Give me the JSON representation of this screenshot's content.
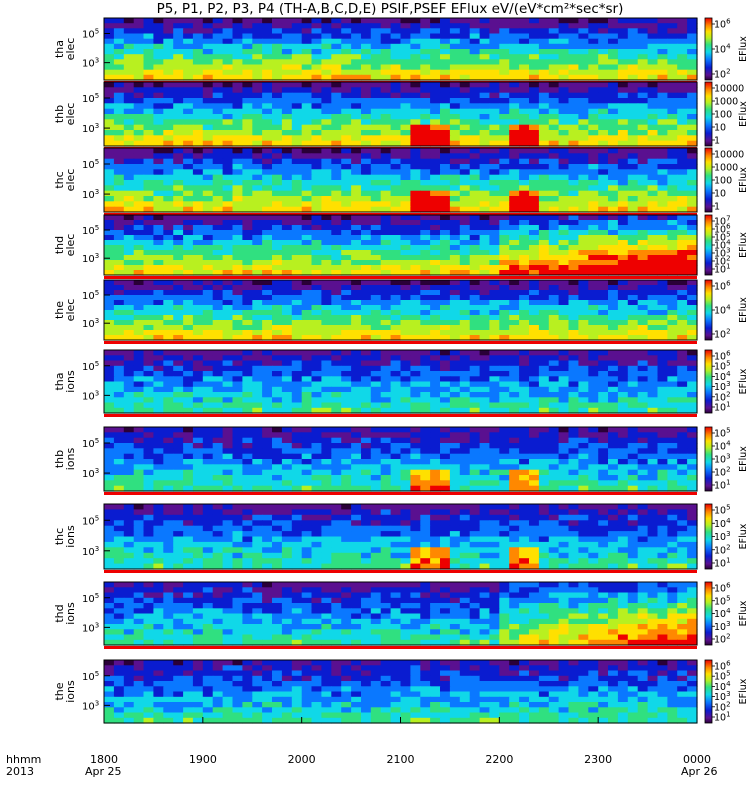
{
  "chart_data": {
    "type": "heatmap",
    "title": "P5, P1, P2, P3, P4 (TH-A,B,C,D,E) PSIF,PSEF EFlux eV/(eV*cm²*sec*sr)",
    "x_axis": {
      "tick_labels": [
        "1800",
        "1900",
        "2000",
        "2100",
        "2200",
        "2300",
        "0000"
      ],
      "start_label": "Apr 25",
      "end_label": "Apr 26",
      "row_labels": [
        "hhmm",
        "2013"
      ]
    },
    "colorbar_label": "EFlux",
    "panels": [
      {
        "probe": "tha",
        "species": "elec",
        "y_ticks": [
          {
            "m": "10",
            "e": "5"
          },
          {
            "m": "10",
            "e": "3"
          }
        ],
        "cbar_ticks": [
          {
            "m": "10",
            "e": "6"
          },
          {
            "m": "10",
            "e": "4"
          },
          {
            "m": "10",
            "e": "2"
          }
        ]
      },
      {
        "probe": "thb",
        "species": "elec",
        "y_ticks": [
          {
            "m": "10",
            "e": "5"
          },
          {
            "m": "10",
            "e": "3"
          }
        ],
        "cbar_ticks": [
          {
            "m": "10000",
            "e": ""
          },
          {
            "m": "1000",
            "e": ""
          },
          {
            "m": "100",
            "e": ""
          },
          {
            "m": "10",
            "e": ""
          },
          {
            "m": "1",
            "e": ""
          }
        ]
      },
      {
        "probe": "thc",
        "species": "elec",
        "y_ticks": [
          {
            "m": "10",
            "e": "5"
          },
          {
            "m": "10",
            "e": "3"
          }
        ],
        "cbar_ticks": [
          {
            "m": "10000",
            "e": ""
          },
          {
            "m": "1000",
            "e": ""
          },
          {
            "m": "100",
            "e": ""
          },
          {
            "m": "10",
            "e": ""
          },
          {
            "m": "1",
            "e": ""
          }
        ]
      },
      {
        "probe": "thd",
        "species": "elec",
        "y_ticks": [
          {
            "m": "10",
            "e": "5"
          },
          {
            "m": "10",
            "e": "3"
          }
        ],
        "cbar_ticks": [
          {
            "m": "10",
            "e": "7"
          },
          {
            "m": "10",
            "e": "6"
          },
          {
            "m": "10",
            "e": "5"
          },
          {
            "m": "10",
            "e": "4"
          },
          {
            "m": "10",
            "e": "3"
          },
          {
            "m": "10",
            "e": "2"
          },
          {
            "m": "10",
            "e": "1"
          }
        ]
      },
      {
        "probe": "the",
        "species": "elec",
        "y_ticks": [
          {
            "m": "10",
            "e": "5"
          },
          {
            "m": "10",
            "e": "3"
          }
        ],
        "cbar_ticks": [
          {
            "m": "10",
            "e": "6"
          },
          {
            "m": "10",
            "e": "4"
          },
          {
            "m": "10",
            "e": "2"
          }
        ]
      },
      {
        "probe": "tha",
        "species": "ions",
        "y_ticks": [
          {
            "m": "10",
            "e": "5"
          },
          {
            "m": "10",
            "e": "3"
          }
        ],
        "cbar_ticks": [
          {
            "m": "10",
            "e": "6"
          },
          {
            "m": "10",
            "e": "5"
          },
          {
            "m": "10",
            "e": "4"
          },
          {
            "m": "10",
            "e": "3"
          },
          {
            "m": "10",
            "e": "2"
          },
          {
            "m": "10",
            "e": "1"
          }
        ]
      },
      {
        "probe": "thb",
        "species": "ions",
        "y_ticks": [
          {
            "m": "10",
            "e": "5"
          },
          {
            "m": "10",
            "e": "3"
          }
        ],
        "cbar_ticks": [
          {
            "m": "10",
            "e": "5"
          },
          {
            "m": "10",
            "e": "4"
          },
          {
            "m": "10",
            "e": "3"
          },
          {
            "m": "10",
            "e": "2"
          },
          {
            "m": "10",
            "e": "1"
          }
        ]
      },
      {
        "probe": "thc",
        "species": "ions",
        "y_ticks": [
          {
            "m": "10",
            "e": "5"
          },
          {
            "m": "10",
            "e": "3"
          }
        ],
        "cbar_ticks": [
          {
            "m": "10",
            "e": "5"
          },
          {
            "m": "10",
            "e": "4"
          },
          {
            "m": "10",
            "e": "3"
          },
          {
            "m": "10",
            "e": "2"
          },
          {
            "m": "10",
            "e": "1"
          }
        ]
      },
      {
        "probe": "thd",
        "species": "ions",
        "y_ticks": [
          {
            "m": "10",
            "e": "5"
          },
          {
            "m": "10",
            "e": "3"
          }
        ],
        "cbar_ticks": [
          {
            "m": "10",
            "e": "6"
          },
          {
            "m": "10",
            "e": "5"
          },
          {
            "m": "10",
            "e": "4"
          },
          {
            "m": "10",
            "e": "3"
          },
          {
            "m": "10",
            "e": "2"
          }
        ]
      },
      {
        "probe": "the",
        "species": "ions",
        "y_ticks": [
          {
            "m": "10",
            "e": "5"
          },
          {
            "m": "10",
            "e": "3"
          }
        ],
        "cbar_ticks": [
          {
            "m": "10",
            "e": "6"
          },
          {
            "m": "10",
            "e": "5"
          },
          {
            "m": "10",
            "e": "4"
          },
          {
            "m": "10",
            "e": "3"
          },
          {
            "m": "10",
            "e": "2"
          },
          {
            "m": "10",
            "e": "1"
          }
        ]
      }
    ]
  }
}
